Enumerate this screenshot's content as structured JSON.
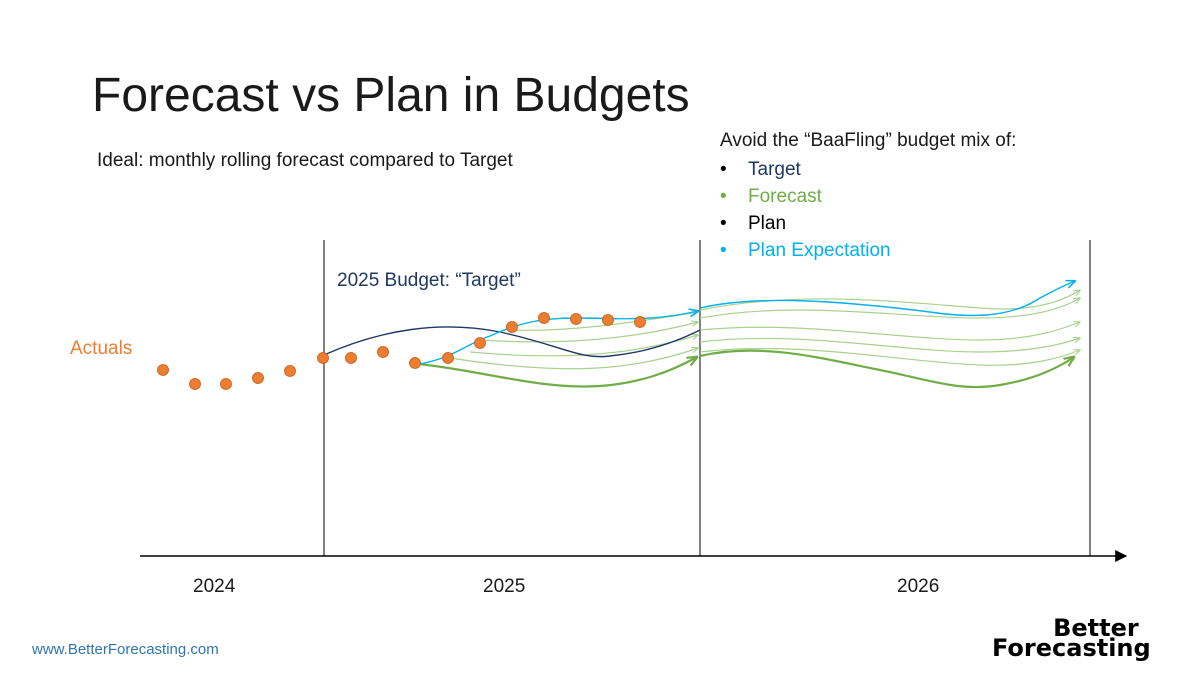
{
  "title": "Forecast vs Plan in Budgets",
  "subtitle": "Ideal: monthly rolling forecast compared to Target",
  "avoid": {
    "heading": "Avoid the “BaaFling” budget mix of:",
    "items": [
      {
        "label": "Target",
        "color": "#1f3864"
      },
      {
        "label": "Forecast",
        "color": "#70ad47"
      },
      {
        "label": "Plan",
        "color": "#000000"
      },
      {
        "label": "Plan Expectation",
        "color": "#00b0f0"
      }
    ]
  },
  "labels": {
    "budget": "2025 Budget: “Target”",
    "actuals": "Actuals"
  },
  "years": [
    "2024",
    "2025",
    "2026"
  ],
  "footer": {
    "url": "www.BetterForecasting.com",
    "logo_line1": "Better",
    "logo_line2": "Forecasting"
  },
  "colors": {
    "actuals": "#ed7d31",
    "target": "#1f3864",
    "forecast": "#70ad47",
    "forecast_light": "#a9d18e",
    "plan_expectation": "#00b0f0",
    "axis": "#000000"
  }
}
